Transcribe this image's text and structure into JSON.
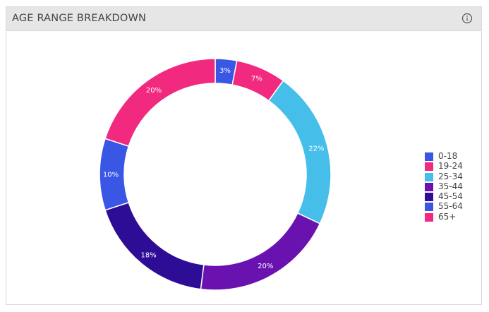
{
  "header": {
    "title": "AGE RANGE BREAKDOWN",
    "info_icon": "info-circle-icon"
  },
  "colors": {
    "header_bg": "#e6e6e6",
    "slice_label": "#ffffff"
  },
  "chart_data": {
    "type": "pie",
    "variant": "donut",
    "title": "AGE RANGE BREAKDOWN",
    "legend_position": "right",
    "categories": [
      "0-18",
      "19-24",
      "25-34",
      "35-44",
      "45-54",
      "55-64",
      "65+"
    ],
    "values": [
      3,
      7,
      22,
      20,
      18,
      10,
      20
    ],
    "labels": [
      "3%",
      "7%",
      "22%",
      "20%",
      "18%",
      "10%",
      "20%"
    ],
    "colors": [
      "#3a56e4",
      "#f22a7f",
      "#45bfea",
      "#6a12b0",
      "#2e0d96",
      "#3a56e4",
      "#f22a7f"
    ]
  }
}
